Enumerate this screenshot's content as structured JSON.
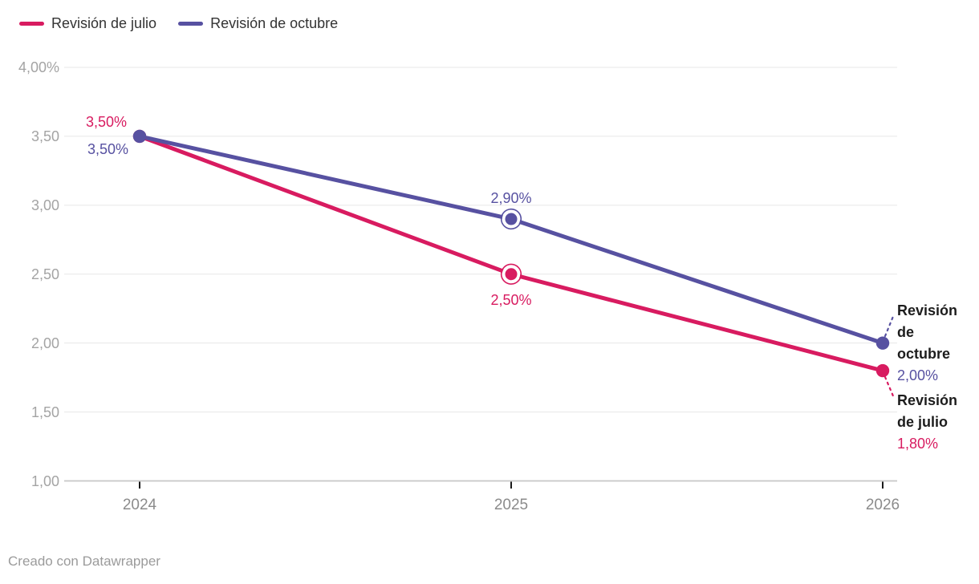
{
  "legend": {
    "items": [
      {
        "label": "Revisión de julio",
        "color": "#d81b60"
      },
      {
        "label": "Revisión de octubre",
        "color": "#5751a1"
      }
    ]
  },
  "footer": {
    "text": "Creado con Datawrapper"
  },
  "colors": {
    "julio": "#d81b60",
    "octubre": "#5751a1",
    "grid": "#e7e7e7",
    "baseline": "#c6c6c6",
    "tick": "#1a1a1a",
    "y_axis_text": "#a4a4a4",
    "x_axis_text": "#8b8b8b",
    "annotation_text": "#1d1d1d",
    "legend_text": "#333333",
    "footer_text": "#9b9b9b"
  },
  "chart_data": {
    "type": "line",
    "x": [
      2024,
      2025,
      2026
    ],
    "x_tick_labels": [
      "2024",
      "2025",
      "2026"
    ],
    "ylim": [
      1.0,
      4.0
    ],
    "grid": true,
    "legend_position": "top-left",
    "y_ticks": [
      {
        "value": 4.0,
        "label": "4,00%"
      },
      {
        "value": 3.5,
        "label": "3,50"
      },
      {
        "value": 3.0,
        "label": "3,00"
      },
      {
        "value": 2.5,
        "label": "2,50"
      },
      {
        "value": 2.0,
        "label": "2,00"
      },
      {
        "value": 1.5,
        "label": "1,50"
      },
      {
        "value": 1.0,
        "label": "1,00"
      }
    ],
    "series": [
      {
        "name": "Revisión de julio",
        "color": "#d81b60",
        "values": [
          3.5,
          2.5,
          1.8
        ]
      },
      {
        "name": "Revisión de octubre",
        "color": "#5751a1",
        "values": [
          3.5,
          2.9,
          2.0
        ]
      }
    ],
    "point_labels": [
      {
        "series": 0,
        "x": 2024,
        "text": "3,50%",
        "position": "left-above"
      },
      {
        "series": 1,
        "x": 2024,
        "text": "3,50%",
        "position": "left-below"
      },
      {
        "series": 1,
        "x": 2025,
        "text": "2,90%",
        "position": "above"
      },
      {
        "series": 0,
        "x": 2025,
        "text": "2,50%",
        "position": "below"
      }
    ],
    "emphasized_x": 2025,
    "end_labels": [
      {
        "series": 1,
        "name": "Revisión de octubre",
        "value_label": "2,00%"
      },
      {
        "series": 0,
        "name": "Revisión de julio",
        "value_label": "1,80%"
      }
    ]
  }
}
